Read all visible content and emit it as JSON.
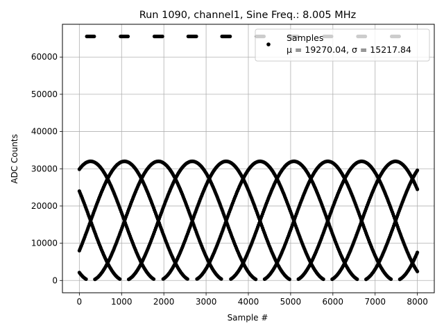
{
  "chart_data": {
    "type": "scatter",
    "title": "Run 1090, channel1, Sine Freq.: 8.005 MHz",
    "xlabel": "Sample #",
    "ylabel": "ADC Counts",
    "xlim": [
      -400,
      8400
    ],
    "ylim": [
      -3300,
      68800
    ],
    "xticks": [
      0,
      1000,
      2000,
      3000,
      4000,
      5000,
      6000,
      7000,
      8000
    ],
    "yticks": [
      0,
      10000,
      20000,
      30000,
      40000,
      50000,
      60000
    ],
    "grid": true,
    "legend": {
      "placement": "top-right",
      "label": "Samples",
      "stats": "μ = 19270.04, σ = 15217.84"
    },
    "series": [
      {
        "name": "Samples",
        "color": "#000000",
        "model": {
          "center": 16000,
          "amplitude": 16000,
          "period_samples": 3207,
          "phases_deg": [
            -30,
            60,
            150,
            240
          ],
          "saturated_value": 65535,
          "clipped_low_value": 0
        }
      }
    ]
  }
}
